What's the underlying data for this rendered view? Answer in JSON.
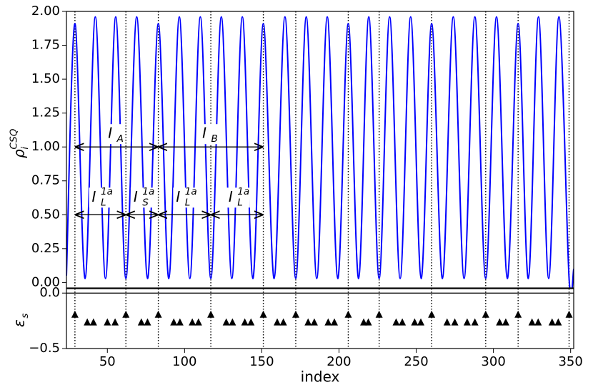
{
  "chart_data": [
    {
      "type": "line",
      "ylabel": {
        "base": "ρ",
        "sub": "i",
        "sup": "CSQ"
      },
      "x": [
        23.5,
        29,
        35.6,
        42.2,
        48.8,
        55.4,
        62,
        69,
        76,
        83,
        89.8,
        96.6,
        103.4,
        110.2,
        117,
        123.8,
        130.6,
        137.4,
        144.2,
        151,
        158,
        165,
        172,
        178.8,
        185.6,
        192.4,
        199.2,
        206,
        212.7,
        219.3,
        226,
        232.8,
        239.6,
        246.4,
        253.2,
        260,
        267,
        274,
        281,
        288,
        295,
        302,
        309,
        316,
        322.6,
        329.2,
        335.8,
        342.4,
        349,
        352
      ],
      "series": [
        {
          "color": "#0000ff",
          "values": [
            0.05,
            1.91,
            0.03,
            1.96,
            0.03,
            1.96,
            0.03,
            1.96,
            0.03,
            1.91,
            0.03,
            1.96,
            0.03,
            1.96,
            0.03,
            1.96,
            0.03,
            1.96,
            0.03,
            1.91,
            0.03,
            1.96,
            0.03,
            1.96,
            0.03,
            1.96,
            0.03,
            1.91,
            0.03,
            1.96,
            0.03,
            1.96,
            0.03,
            1.96,
            0.03,
            1.91,
            0.03,
            1.96,
            0.03,
            1.96,
            0.03,
            1.96,
            0.03,
            1.91,
            0.03,
            1.96,
            0.03,
            1.96,
            0.03,
            0.1
          ]
        }
      ],
      "xlim": [
        23.5,
        352
      ],
      "ylim": [
        -0.04,
        2.0
      ],
      "yticks": [
        {
          "value": 0,
          "label": "0.00"
        },
        {
          "value": 0.25,
          "label": "0.25"
        },
        {
          "value": 0.5,
          "label": "0.50"
        },
        {
          "value": 0.75,
          "label": "0.75"
        },
        {
          "value": 1,
          "label": "1.00"
        },
        {
          "value": 1.25,
          "label": "1.25"
        },
        {
          "value": 1.5,
          "label": "1.50"
        },
        {
          "value": 1.75,
          "label": "1.75"
        },
        {
          "value": 2,
          "label": "2.00"
        }
      ],
      "vlines": [
        29,
        62,
        83,
        117,
        151,
        172,
        206,
        226,
        260,
        295,
        316,
        349
      ],
      "annotations": [
        {
          "label": {
            "base": "I",
            "sub": "A"
          },
          "x": [
            29,
            83
          ],
          "y": 1.0
        },
        {
          "label": {
            "base": "I",
            "sub": "B"
          },
          "x": [
            83,
            151
          ],
          "y": 1.0
        },
        {
          "label": {
            "base": "I",
            "sub": "L",
            "sup": "1a"
          },
          "x": [
            29,
            62
          ],
          "y": 0.5
        },
        {
          "label": {
            "base": "I",
            "sub": "S",
            "sup": "1a"
          },
          "x": [
            62,
            83
          ],
          "y": 0.5
        },
        {
          "label": {
            "base": "I",
            "sub": "L",
            "sup": "1a"
          },
          "x": [
            83,
            117
          ],
          "y": 0.5
        },
        {
          "label": {
            "base": "I",
            "sub": "L",
            "sup": "1a"
          },
          "x": [
            117,
            151
          ],
          "y": 0.5
        }
      ]
    },
    {
      "type": "scatter",
      "xlabel": "index",
      "ylabel": {
        "base": "ε",
        "sub": "s"
      },
      "x": [
        29,
        37,
        41,
        50,
        55,
        62,
        72,
        76,
        83,
        93,
        97,
        105,
        109,
        117,
        127,
        131,
        139,
        143,
        151,
        160,
        164,
        172,
        180,
        184,
        193,
        197,
        206,
        216,
        219,
        226,
        237,
        241,
        249,
        253,
        260,
        270,
        275,
        283,
        288,
        295,
        304,
        308,
        316,
        325,
        329,
        338,
        342,
        349
      ],
      "values": [
        -0.19,
        -0.26,
        -0.26,
        -0.26,
        -0.26,
        -0.19,
        -0.26,
        -0.26,
        -0.19,
        -0.26,
        -0.26,
        -0.26,
        -0.26,
        -0.19,
        -0.26,
        -0.26,
        -0.26,
        -0.26,
        -0.19,
        -0.26,
        -0.26,
        -0.19,
        -0.26,
        -0.26,
        -0.26,
        -0.26,
        -0.19,
        -0.26,
        -0.26,
        -0.19,
        -0.26,
        -0.26,
        -0.26,
        -0.26,
        -0.19,
        -0.26,
        -0.26,
        -0.26,
        -0.26,
        -0.19,
        -0.26,
        -0.26,
        -0.19,
        -0.26,
        -0.26,
        -0.26,
        -0.26,
        -0.19
      ],
      "color": "#000000",
      "xlim": [
        23.5,
        352
      ],
      "ylim": [
        -0.5,
        0.04
      ],
      "xticks": [
        50,
        100,
        150,
        200,
        250,
        300,
        350
      ],
      "yticks": [
        {
          "value": 0,
          "label": "0.0"
        },
        {
          "value": -0.5,
          "label": "−0.5"
        }
      ],
      "vlines": [
        29,
        62,
        83,
        117,
        151,
        172,
        206,
        226,
        260,
        295,
        316,
        349
      ]
    }
  ]
}
